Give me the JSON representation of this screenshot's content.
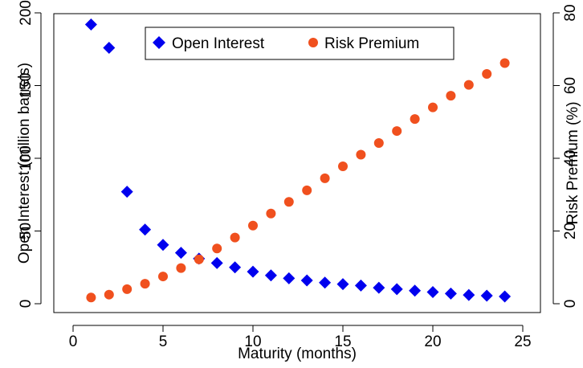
{
  "chart_data": {
    "type": "scatter",
    "xlabel": "Maturity (months)",
    "ylabel": "Open Interest (million barrels)",
    "y2label": "Risk Premium (%)",
    "xlim": [
      0,
      25
    ],
    "ylim": [
      0,
      200
    ],
    "y2lim": [
      0,
      80
    ],
    "x_ticks": [
      "0",
      "5",
      "10",
      "15",
      "20",
      "25"
    ],
    "y_ticks": [
      "0",
      "50",
      "100",
      "150",
      "200"
    ],
    "y2_ticks": [
      "0",
      "20",
      "40",
      "60",
      "80"
    ],
    "grid": false,
    "legend_position": "top",
    "series": [
      {
        "name": "Open Interest",
        "axis": "left",
        "marker": "diamond",
        "color": "#0000ee",
        "x": [
          1,
          2,
          3,
          4,
          5,
          6,
          7,
          8,
          9,
          10,
          11,
          12,
          13,
          14,
          15,
          16,
          17,
          18,
          19,
          20,
          21,
          22,
          23,
          24
        ],
        "values": [
          192,
          176,
          77,
          51,
          40.5,
          35,
          31,
          28,
          25,
          22,
          19.5,
          17.5,
          16,
          14.5,
          13.5,
          12.5,
          11,
          10,
          9,
          8,
          7,
          6,
          5.5,
          5
        ]
      },
      {
        "name": "Risk Premium",
        "axis": "right",
        "marker": "circle",
        "color": "#f0501e",
        "x": [
          1,
          2,
          3,
          4,
          5,
          6,
          7,
          8,
          9,
          10,
          11,
          12,
          13,
          14,
          15,
          16,
          17,
          18,
          19,
          20,
          21,
          22,
          23,
          24
        ],
        "values": [
          1.7,
          2.5,
          4.0,
          5.5,
          7.5,
          9.8,
          12.2,
          15.2,
          18.2,
          21.5,
          24.8,
          28.0,
          31.2,
          34.5,
          37.8,
          41.0,
          44.2,
          47.5,
          50.8,
          54.0,
          57.2,
          60.2,
          63.2,
          66.2
        ]
      }
    ]
  }
}
